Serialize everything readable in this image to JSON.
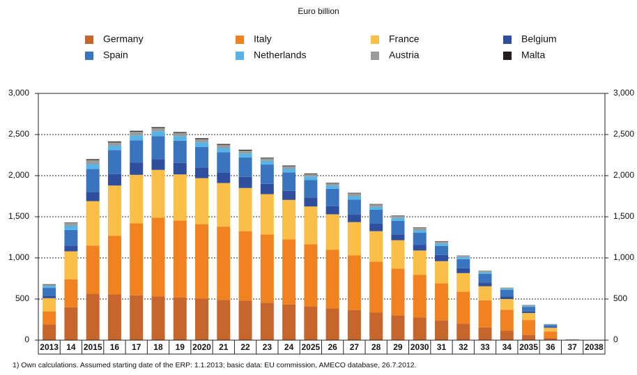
{
  "chart_data": {
    "type": "bar",
    "stacked": true,
    "title": "Euro billion",
    "footnote": "1) Own calculations. Assumed starting date of the ERP: 1.1.2013; basic data: EU commission, AMECO database, 26.7.2012.",
    "categories": [
      "2013",
      "14",
      "2015",
      "16",
      "17",
      "18",
      "19",
      "2020",
      "21",
      "22",
      "23",
      "24",
      "2025",
      "26",
      "27",
      "28",
      "29",
      "2030",
      "31",
      "32",
      "33",
      "34",
      "2035",
      "36",
      "37",
      "2038"
    ],
    "ylim": [
      0,
      3000
    ],
    "yticks": [
      0,
      500,
      {
        "value": 1000,
        "label": "1,000"
      },
      {
        "value": 1500,
        "label": "1,500"
      },
      {
        "value": 2000,
        "label": "2,000"
      },
      {
        "value": 2500,
        "label": "2,500"
      },
      {
        "value": 3000,
        "label": "3,000"
      }
    ],
    "grid": true,
    "series": [
      {
        "name": "Germany",
        "color": "#c6652c",
        "values": [
          190,
          400,
          565,
          555,
          545,
          530,
          520,
          505,
          490,
          480,
          455,
          435,
          410,
          385,
          365,
          335,
          300,
          275,
          240,
          200,
          155,
          115,
          65,
          25,
          2,
          0
        ]
      },
      {
        "name": "Italy",
        "color": "#f0821f",
        "values": [
          160,
          340,
          585,
          715,
          875,
          960,
          935,
          905,
          890,
          845,
          830,
          790,
          755,
          715,
          665,
          620,
          570,
          520,
          450,
          390,
          330,
          255,
          180,
          80,
          3,
          0
        ]
      },
      {
        "name": "France",
        "color": "#fbbf47",
        "values": [
          160,
          340,
          540,
          610,
          590,
          580,
          560,
          560,
          530,
          525,
          490,
          480,
          460,
          430,
          405,
          370,
          345,
          295,
          270,
          225,
          170,
          130,
          85,
          45,
          2,
          0
        ]
      },
      {
        "name": "Belgium",
        "color": "#2f4f9e",
        "values": [
          30,
          70,
          110,
          140,
          150,
          130,
          140,
          130,
          130,
          135,
          125,
          110,
          110,
          100,
          90,
          90,
          70,
          70,
          75,
          60,
          45,
          30,
          20,
          10,
          1,
          0
        ]
      },
      {
        "name": "Spain",
        "color": "#3a74bf",
        "values": [
          95,
          190,
          280,
          290,
          270,
          280,
          270,
          250,
          245,
          235,
          235,
          225,
          210,
          210,
          185,
          170,
          165,
          145,
          110,
          110,
          105,
          80,
          55,
          25,
          2,
          0
        ]
      },
      {
        "name": "Netherlands",
        "color": "#56b5e6",
        "values": [
          25,
          50,
          60,
          55,
          60,
          60,
          55,
          55,
          50,
          50,
          45,
          45,
          45,
          40,
          40,
          35,
          35,
          30,
          30,
          25,
          20,
          15,
          10,
          5,
          1,
          0
        ]
      },
      {
        "name": "Austria",
        "color": "#9b9b9b",
        "values": [
          15,
          35,
          50,
          40,
          45,
          40,
          40,
          40,
          40,
          35,
          30,
          30,
          30,
          25,
          35,
          30,
          25,
          30,
          25,
          15,
          15,
          10,
          10,
          5,
          0,
          0
        ]
      },
      {
        "name": "Malta",
        "color": "#231f20",
        "values": [
          5,
          5,
          10,
          10,
          10,
          10,
          10,
          10,
          10,
          10,
          8,
          8,
          7,
          7,
          6,
          5,
          5,
          5,
          4,
          3,
          3,
          2,
          2,
          1,
          0,
          0
        ]
      }
    ]
  }
}
